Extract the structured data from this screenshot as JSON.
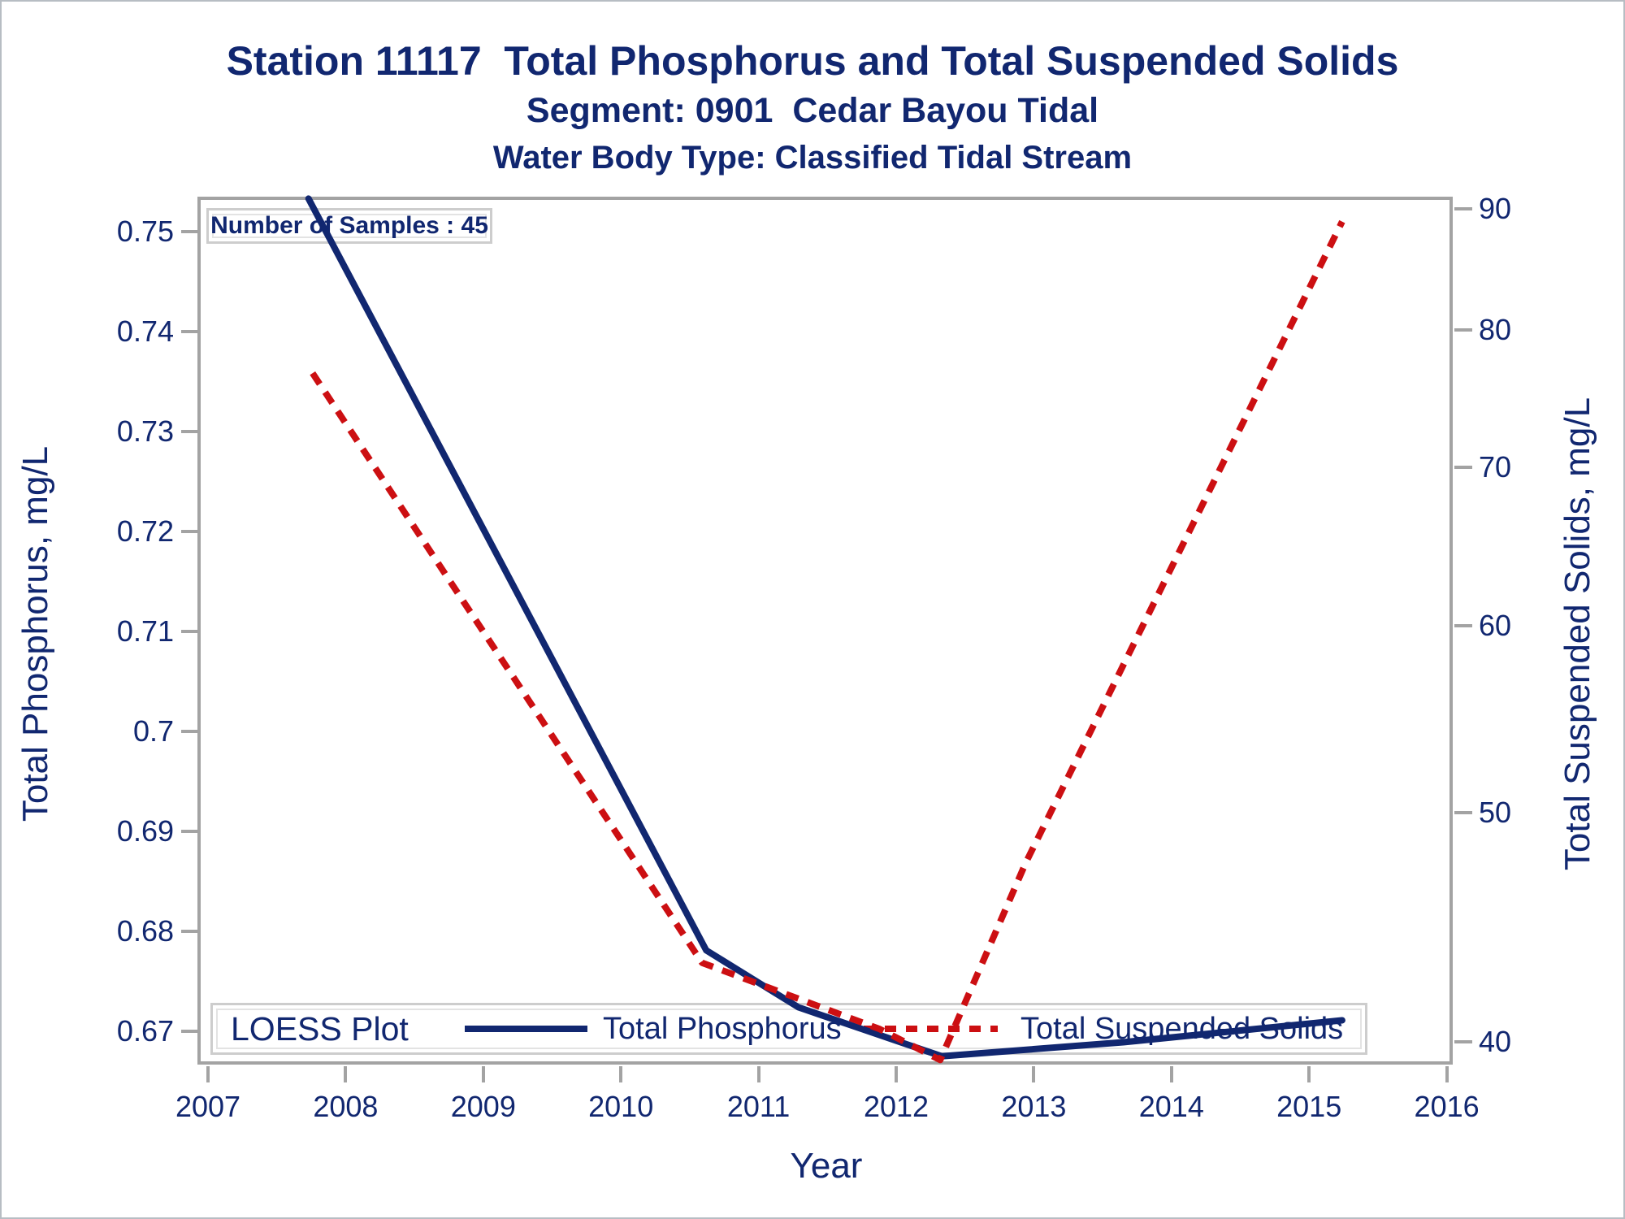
{
  "header": {
    "title1": "Station 11117  Total Phosphorus and Total Suspended Solids",
    "title2": "Segment: 0901  Cedar Bayou Tidal",
    "title3": "Water Body Type: Classified Tidal Stream"
  },
  "annotation": {
    "text": "Number of Samples : 45"
  },
  "legend": {
    "title": "LOESS Plot",
    "series1": "Total Phosphorus",
    "series2": "Total Suspended Solids"
  },
  "colors": {
    "navy": "#112770",
    "red": "#CC0F12",
    "axis_gray": "#A3A3A3"
  },
  "chart_data": {
    "type": "line",
    "title": "Station 11117  Total Phosphorus and Total Suspended Solids",
    "subtitle": "Segment: 0901  Cedar Bayou Tidal",
    "subtitle2": "Water Body Type: Classified Tidal Stream",
    "annotation": "Number of Samples : 45",
    "legend_title": "LOESS Plot",
    "legend_position": "bottom-inside",
    "grid": false,
    "x_axis": {
      "label": "Year",
      "scale": "linear",
      "range": [
        2006.94,
        2016.06
      ],
      "ticks": [
        2007,
        2008,
        2009,
        2010,
        2011,
        2012,
        2013,
        2014,
        2015,
        2016
      ]
    },
    "y_left_axis": {
      "label": "Total Phosphorus, mg/L",
      "scale": "linear",
      "range": [
        0.6665,
        0.7533
      ],
      "tick_values": [
        0.75,
        0.74,
        0.73,
        0.72,
        0.71,
        0.7,
        0.69,
        0.68,
        0.67
      ],
      "tick_labels": [
        "0.75",
        "0.74",
        "0.73",
        "0.72",
        "0.71",
        "0.7",
        "0.69",
        "0.68",
        "0.67"
      ]
    },
    "y_right_axis": {
      "label": "Total Suspended Solids, mg/L",
      "scale": "log10",
      "range": [
        39.1,
        90.8
      ],
      "tick_values": [
        90,
        80,
        70,
        60,
        50,
        40
      ],
      "tick_labels": [
        "90",
        "80",
        "70",
        "60",
        "50",
        "40"
      ]
    },
    "series": [
      {
        "name": "Total Phosphorus",
        "axis": "left",
        "style": "solid",
        "color_key": "navy",
        "points": [
          [
            2007.73,
            0.7533
          ],
          [
            2010.62,
            0.6781
          ],
          [
            2011.29,
            0.6724
          ],
          [
            2012.33,
            0.6675
          ],
          [
            2013.65,
            0.6689
          ],
          [
            2015.24,
            0.6711
          ]
        ]
      },
      {
        "name": "Total Suspended Solids",
        "axis": "right",
        "style": "dashed",
        "color_key": "red",
        "points": [
          [
            2007.76,
            76.7
          ],
          [
            2010.59,
            43.2
          ],
          [
            2011.88,
            40.5
          ],
          [
            2012.32,
            39.3
          ],
          [
            2012.94,
            47.6
          ],
          [
            2015.24,
            88.9
          ]
        ]
      }
    ]
  }
}
